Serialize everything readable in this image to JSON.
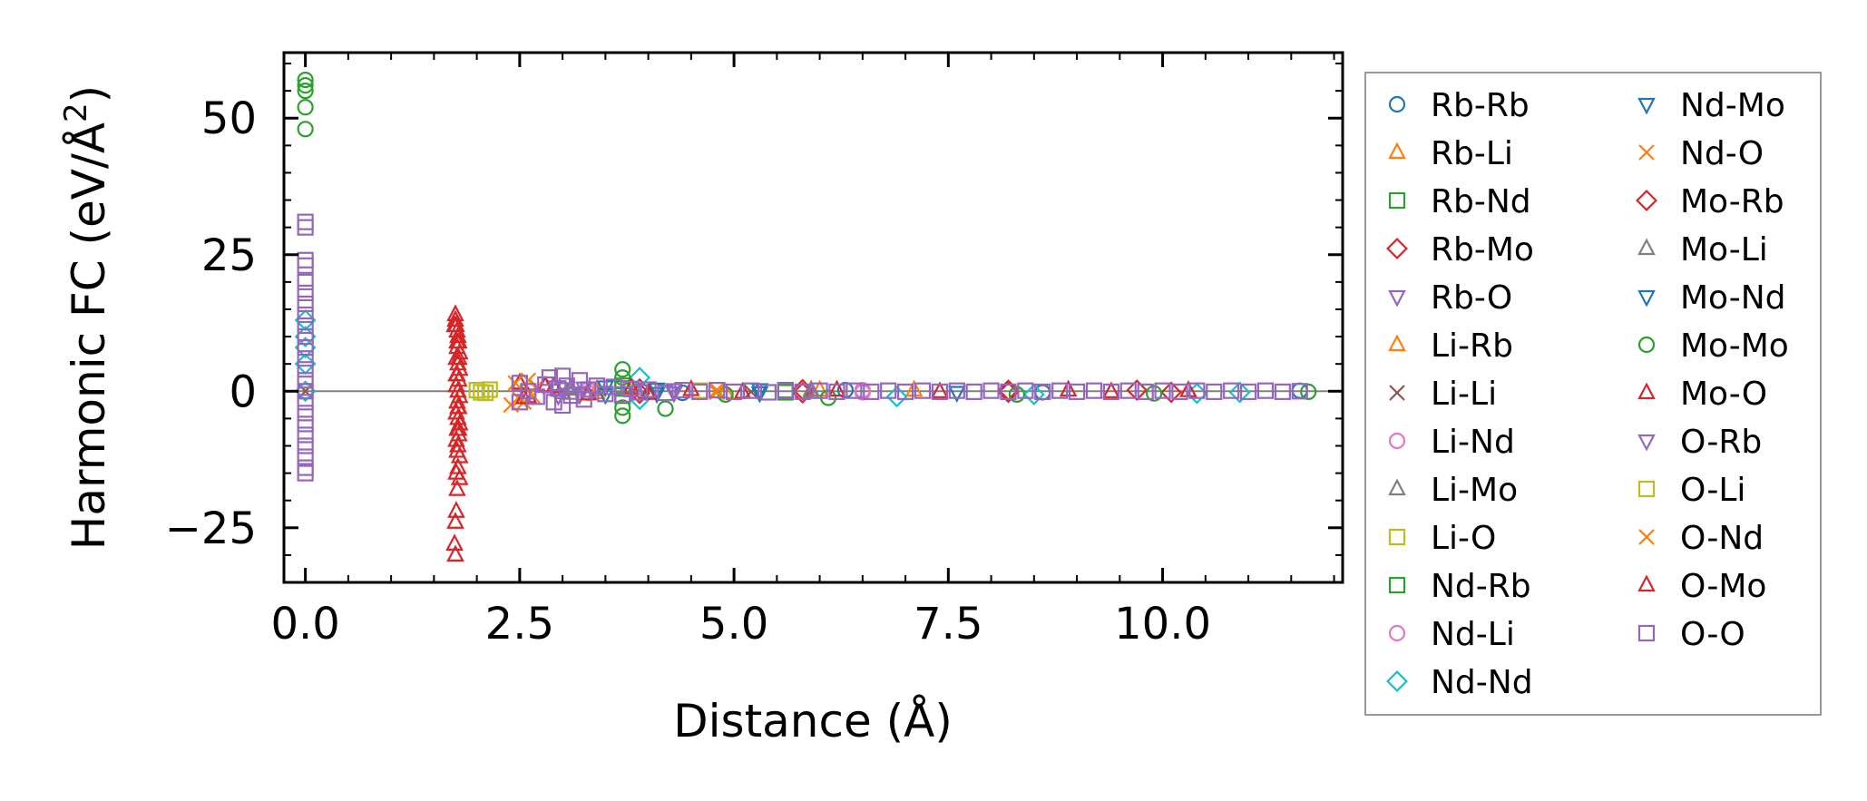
{
  "chart_data": {
    "type": "scatter",
    "title": "",
    "xlabel": "Distance (Å)",
    "ylabel": "Harmonic FC (eV/Å²)",
    "ylabel_main": "Harmonic FC (eV/Å",
    "ylabel_sup": "2",
    "ylabel_close": ")",
    "xlim": [
      -0.25,
      12.1
    ],
    "ylim": [
      -35,
      62
    ],
    "xticks": [
      0.0,
      2.5,
      5.0,
      7.5,
      10.0
    ],
    "xtick_labels": [
      "0.0",
      "2.5",
      "5.0",
      "7.5",
      "10.0"
    ],
    "yticks": [
      -25,
      0,
      25,
      50
    ],
    "ytick_labels": [
      "−25",
      "0",
      "25",
      "50"
    ],
    "zero_line": 0,
    "legend_position": "outside-right",
    "series": [
      {
        "name": "Rb-Rb",
        "marker": "circle",
        "color": "#1f77b4",
        "points": [
          [
            0,
            0
          ],
          [
            4.4,
            -0.3
          ],
          [
            6.3,
            0.2
          ],
          [
            8.6,
            -0.2
          ],
          [
            11.6,
            0.1
          ]
        ]
      },
      {
        "name": "Rb-Li",
        "marker": "triangle-up",
        "color": "#ff7f0e",
        "points": [
          [
            3.4,
            0.3
          ],
          [
            4.9,
            -0.2
          ],
          [
            7.1,
            0.2
          ]
        ]
      },
      {
        "name": "Rb-Nd",
        "marker": "square",
        "color": "#2ca02c",
        "points": [
          [
            3.7,
            1.0
          ],
          [
            3.7,
            -0.8
          ],
          [
            5.6,
            0.2
          ]
        ]
      },
      {
        "name": "Rb-Mo",
        "marker": "diamond",
        "color": "#d62728",
        "points": [
          [
            3.9,
            0.4
          ],
          [
            5.8,
            -0.3
          ],
          [
            8.2,
            0.2
          ],
          [
            10.1,
            -0.2
          ]
        ]
      },
      {
        "name": "Rb-O",
        "marker": "triangle-down",
        "color": "#9467bd",
        "points": [
          [
            2.9,
            0.8
          ],
          [
            3.2,
            -0.6
          ],
          [
            4.3,
            0.3
          ]
        ]
      },
      {
        "name": "Li-Rb",
        "marker": "triangle-up",
        "color": "#ff7f0e",
        "points": [
          [
            3.4,
            -0.3
          ],
          [
            6.0,
            0.2
          ]
        ]
      },
      {
        "name": "Li-Li",
        "marker": "x",
        "color": "#8c564b",
        "points": [
          [
            0,
            0
          ],
          [
            3.0,
            0.2
          ],
          [
            5.2,
            -0.1
          ]
        ]
      },
      {
        "name": "Li-Nd",
        "marker": "circle",
        "color": "#e377c2",
        "points": [
          [
            3.3,
            0.3
          ],
          [
            6.5,
            -0.2
          ]
        ]
      },
      {
        "name": "Li-Mo",
        "marker": "triangle-up",
        "color": "#7f7f7f",
        "points": [
          [
            3.1,
            -0.4
          ],
          [
            5.9,
            0.2
          ]
        ]
      },
      {
        "name": "Li-O",
        "marker": "square",
        "color": "#bcbd22",
        "points": [
          [
            2.0,
            0.2
          ],
          [
            2.1,
            -0.3
          ],
          [
            4.6,
            0.1
          ]
        ]
      },
      {
        "name": "Nd-Rb",
        "marker": "square",
        "color": "#2ca02c",
        "points": [
          [
            3.7,
            0.5
          ],
          [
            5.6,
            -0.2
          ]
        ]
      },
      {
        "name": "Nd-Li",
        "marker": "circle",
        "color": "#e377c2",
        "points": [
          [
            3.3,
            -0.3
          ],
          [
            6.5,
            0.2
          ]
        ]
      },
      {
        "name": "Nd-Nd",
        "marker": "diamond",
        "color": "#17becf",
        "points": [
          [
            0,
            13
          ],
          [
            0,
            10
          ],
          [
            0,
            8
          ],
          [
            0,
            5
          ],
          [
            0,
            0
          ],
          [
            3.9,
            2.5
          ],
          [
            3.9,
            -1.5
          ],
          [
            6.9,
            -1.0
          ],
          [
            8.5,
            -0.6
          ],
          [
            10.4,
            -0.4
          ],
          [
            10.9,
            -0.2
          ]
        ]
      },
      {
        "name": "Nd-Mo",
        "marker": "triangle-down",
        "color": "#1f77b4",
        "points": [
          [
            3.5,
            0.8
          ],
          [
            4.1,
            -0.4
          ],
          [
            5.3,
            0.3
          ],
          [
            7.6,
            -0.2
          ]
        ]
      },
      {
        "name": "Nd-O",
        "marker": "x",
        "color": "#ff7f0e",
        "points": [
          [
            2.4,
            -2.5
          ],
          [
            2.5,
            -1.5
          ],
          [
            2.6,
            2.0
          ],
          [
            2.7,
            0.8
          ],
          [
            4.8,
            0.2
          ]
        ]
      },
      {
        "name": "Mo-Rb",
        "marker": "diamond",
        "color": "#d62728",
        "points": [
          [
            3.9,
            -0.4
          ],
          [
            5.8,
            0.3
          ],
          [
            8.2,
            -0.2
          ],
          [
            9.7,
            0.2
          ]
        ]
      },
      {
        "name": "Mo-Li",
        "marker": "triangle-up",
        "color": "#7f7f7f",
        "points": [
          [
            3.1,
            0.4
          ],
          [
            5.9,
            -0.2
          ]
        ]
      },
      {
        "name": "Mo-Nd",
        "marker": "triangle-down",
        "color": "#1f77b4",
        "points": [
          [
            3.5,
            -0.6
          ],
          [
            4.1,
            0.4
          ],
          [
            5.3,
            -0.3
          ]
        ]
      },
      {
        "name": "Mo-Mo",
        "marker": "circle",
        "color": "#2ca02c",
        "points": [
          [
            0,
            57
          ],
          [
            0,
            56
          ],
          [
            0,
            55
          ],
          [
            0,
            52
          ],
          [
            0,
            48
          ],
          [
            3.7,
            4.0
          ],
          [
            3.7,
            2.5
          ],
          [
            3.7,
            -3.0
          ],
          [
            3.7,
            -4.5
          ],
          [
            4.2,
            -3.2
          ],
          [
            4.9,
            -0.6
          ],
          [
            6.1,
            -1.2
          ],
          [
            8.3,
            -0.6
          ],
          [
            9.9,
            -0.4
          ],
          [
            11.7,
            -0.1
          ]
        ]
      },
      {
        "name": "Mo-O",
        "marker": "triangle-up",
        "color": "#d62728",
        "points": [
          [
            1.75,
            14
          ],
          [
            1.75,
            13
          ],
          [
            1.76,
            12
          ],
          [
            1.77,
            11
          ],
          [
            1.78,
            10
          ],
          [
            1.79,
            9
          ],
          [
            1.77,
            8
          ],
          [
            1.8,
            7
          ],
          [
            1.76,
            6
          ],
          [
            1.78,
            5
          ],
          [
            1.8,
            4
          ],
          [
            1.77,
            3
          ],
          [
            1.79,
            2
          ],
          [
            1.76,
            1
          ],
          [
            1.78,
            0
          ],
          [
            1.8,
            -1
          ],
          [
            1.77,
            -2
          ],
          [
            1.79,
            -3
          ],
          [
            1.76,
            -4
          ],
          [
            1.78,
            -5
          ],
          [
            1.8,
            -6
          ],
          [
            1.77,
            -7
          ],
          [
            1.79,
            -8
          ],
          [
            1.76,
            -9
          ],
          [
            1.78,
            -10
          ],
          [
            1.8,
            -12
          ],
          [
            1.78,
            -14
          ],
          [
            1.8,
            -16
          ],
          [
            1.77,
            -18
          ],
          [
            1.76,
            -22
          ],
          [
            1.75,
            -24
          ],
          [
            1.74,
            -28
          ],
          [
            1.75,
            -30
          ],
          [
            2.5,
            1.5
          ],
          [
            2.6,
            -1.0
          ],
          [
            2.9,
            0.8
          ],
          [
            3.3,
            -0.5
          ],
          [
            3.8,
            0.6
          ],
          [
            4.0,
            -0.4
          ],
          [
            4.5,
            0.3
          ],
          [
            5.1,
            -0.2
          ],
          [
            6.2,
            0.2
          ],
          [
            7.4,
            -0.1
          ],
          [
            8.9,
            0.2
          ],
          [
            9.4,
            -0.1
          ],
          [
            10.3,
            0.1
          ]
        ]
      },
      {
        "name": "O-Rb",
        "marker": "triangle-down",
        "color": "#9467bd",
        "points": [
          [
            2.95,
            -0.8
          ],
          [
            3.25,
            0.6
          ],
          [
            4.3,
            -0.3
          ]
        ]
      },
      {
        "name": "O-Li",
        "marker": "square",
        "color": "#bcbd22",
        "points": [
          [
            2.05,
            -0.2
          ],
          [
            2.15,
            0.3
          ]
        ]
      },
      {
        "name": "O-Nd",
        "marker": "x",
        "color": "#ff7f0e",
        "points": [
          [
            2.45,
            1.5
          ],
          [
            2.55,
            -2.0
          ],
          [
            2.65,
            -0.8
          ],
          [
            4.8,
            -0.2
          ]
        ]
      },
      {
        "name": "O-Mo",
        "marker": "triangle-up",
        "color": "#d62728",
        "points": [
          [
            1.74,
            12
          ],
          [
            1.77,
            9
          ],
          [
            1.79,
            6
          ],
          [
            1.76,
            3
          ],
          [
            1.78,
            -3
          ],
          [
            1.79,
            -7
          ],
          [
            1.77,
            -11
          ],
          [
            1.76,
            -15
          ],
          [
            2.55,
            -1.2
          ],
          [
            2.8,
            1.0
          ]
        ]
      },
      {
        "name": "O-O",
        "marker": "square",
        "color": "#9467bd",
        "points": [
          [
            0,
            31
          ],
          [
            0,
            30
          ],
          [
            0,
            24
          ],
          [
            0,
            23
          ],
          [
            0,
            20
          ],
          [
            0,
            18
          ],
          [
            0,
            16
          ],
          [
            0,
            14
          ],
          [
            0,
            12
          ],
          [
            0,
            10
          ],
          [
            0,
            8
          ],
          [
            0,
            6
          ],
          [
            0,
            4
          ],
          [
            0,
            2
          ],
          [
            0,
            0
          ],
          [
            0,
            -2
          ],
          [
            0,
            -4
          ],
          [
            0,
            -6
          ],
          [
            0,
            -8
          ],
          [
            0,
            -10
          ],
          [
            0,
            -12
          ],
          [
            0,
            -14
          ],
          [
            0,
            -15
          ],
          [
            2.5,
            -2.0
          ],
          [
            2.5,
            1.5
          ],
          [
            2.6,
            0.0
          ],
          [
            2.7,
            -1.0
          ],
          [
            2.8,
            1.2
          ],
          [
            2.85,
            2.5
          ],
          [
            2.9,
            -2.0
          ],
          [
            2.95,
            0.5
          ],
          [
            3.0,
            2.8
          ],
          [
            3.0,
            -2.6
          ],
          [
            3.05,
            1.0
          ],
          [
            3.1,
            -0.8
          ],
          [
            3.2,
            2.0
          ],
          [
            3.25,
            -1.5
          ],
          [
            3.3,
            0.3
          ],
          [
            3.4,
            1.0
          ],
          [
            3.5,
            -0.5
          ],
          [
            3.6,
            0.8
          ],
          [
            3.7,
            -0.6
          ],
          [
            3.8,
            0.4
          ],
          [
            3.9,
            -0.2
          ],
          [
            4.0,
            0.3
          ],
          [
            4.2,
            -0.3
          ],
          [
            4.4,
            0.2
          ],
          [
            4.6,
            -0.1
          ],
          [
            4.8,
            0.2
          ],
          [
            5.0,
            -0.1
          ],
          [
            5.2,
            0.1
          ],
          [
            5.4,
            -0.2
          ],
          [
            5.6,
            0.1
          ],
          [
            5.8,
            -0.1
          ],
          [
            6.0,
            0.1
          ],
          [
            6.2,
            -0.1
          ],
          [
            6.4,
            0.1
          ],
          [
            6.6,
            -0.1
          ],
          [
            6.8,
            0.1
          ],
          [
            7.0,
            -0.1
          ],
          [
            7.2,
            0.1
          ],
          [
            7.4,
            -0.1
          ],
          [
            7.6,
            0.1
          ],
          [
            7.8,
            -0.1
          ],
          [
            8.0,
            0.1
          ],
          [
            8.2,
            -0.1
          ],
          [
            8.4,
            0.1
          ],
          [
            8.6,
            -0.1
          ],
          [
            8.8,
            0.1
          ],
          [
            9.0,
            -0.1
          ],
          [
            9.2,
            0.1
          ],
          [
            9.4,
            -0.1
          ],
          [
            9.6,
            0.1
          ],
          [
            9.8,
            -0.1
          ],
          [
            10.0,
            0.1
          ],
          [
            10.2,
            -0.1
          ],
          [
            10.4,
            0.1
          ],
          [
            10.6,
            -0.1
          ],
          [
            10.8,
            0.1
          ],
          [
            11.0,
            -0.1
          ],
          [
            11.2,
            0.1
          ],
          [
            11.4,
            -0.1
          ],
          [
            11.6,
            0.0
          ]
        ]
      }
    ]
  }
}
